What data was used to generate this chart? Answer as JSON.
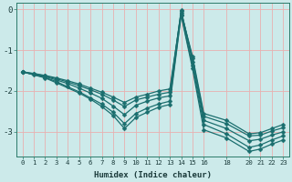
{
  "xlabel": "Humidex (Indice chaleur)",
  "background_color": "#cceaea",
  "grid_color": "#e8b0b0",
  "line_color": "#1a6e6e",
  "markersize": 2.5,
  "linewidth": 0.9,
  "xlim": [
    -0.5,
    23.5
  ],
  "ylim": [
    -3.6,
    0.15
  ],
  "xticks": [
    0,
    1,
    2,
    3,
    4,
    5,
    6,
    7,
    8,
    9,
    10,
    11,
    12,
    13,
    14,
    15,
    16,
    18,
    20,
    21,
    22,
    23
  ],
  "yticks": [
    0,
    -1,
    -2,
    -3
  ],
  "curves": [
    {
      "x": [
        0,
        1,
        2,
        3,
        4,
        5,
        6,
        7,
        8,
        9,
        10,
        11,
        12,
        13,
        14,
        15,
        16,
        18,
        20,
        21,
        22,
        23
      ],
      "y": [
        -1.53,
        -1.57,
        -1.62,
        -1.68,
        -1.75,
        -1.83,
        -1.93,
        -2.03,
        -2.15,
        -2.28,
        -2.15,
        -2.08,
        -2.0,
        -1.95,
        -0.08,
        -1.15,
        -2.55,
        -2.72,
        -3.05,
        -3.02,
        -2.92,
        -2.82
      ]
    },
    {
      "x": [
        0,
        1,
        2,
        3,
        4,
        5,
        6,
        7,
        8,
        9,
        10,
        11,
        12,
        13,
        14,
        15,
        16,
        18,
        20,
        21,
        22,
        23
      ],
      "y": [
        -1.53,
        -1.58,
        -1.63,
        -1.7,
        -1.78,
        -1.87,
        -1.97,
        -2.08,
        -2.22,
        -2.38,
        -2.22,
        -2.15,
        -2.08,
        -2.03,
        -0.05,
        -1.2,
        -2.62,
        -2.8,
        -3.1,
        -3.08,
        -2.98,
        -2.9
      ]
    },
    {
      "x": [
        0,
        1,
        2,
        3,
        4,
        5,
        6,
        7,
        8,
        9,
        10,
        11,
        12,
        13,
        14,
        15,
        16,
        18,
        20,
        21,
        22,
        23
      ],
      "y": [
        -1.53,
        -1.6,
        -1.65,
        -1.73,
        -1.82,
        -1.93,
        -2.05,
        -2.18,
        -2.37,
        -2.58,
        -2.35,
        -2.25,
        -2.17,
        -2.12,
        -0.02,
        -1.28,
        -2.72,
        -2.92,
        -3.22,
        -3.18,
        -3.08,
        -3.0
      ]
    },
    {
      "x": [
        0,
        2,
        3,
        4,
        5,
        6,
        7,
        8,
        9,
        10,
        11,
        12,
        13,
        14,
        15,
        16,
        18,
        20,
        21,
        22,
        23
      ],
      "y": [
        -1.53,
        -1.67,
        -1.77,
        -1.9,
        -2.02,
        -2.17,
        -2.32,
        -2.52,
        -2.8,
        -2.55,
        -2.42,
        -2.32,
        -2.25,
        -0.12,
        -1.38,
        -2.82,
        -3.05,
        -3.38,
        -3.32,
        -3.2,
        -3.1
      ]
    },
    {
      "x": [
        0,
        2,
        3,
        5,
        6,
        7,
        8,
        9,
        10,
        11,
        12,
        13,
        14,
        15,
        16,
        18,
        20,
        21,
        22,
        23
      ],
      "y": [
        -1.53,
        -1.68,
        -1.8,
        -2.05,
        -2.2,
        -2.38,
        -2.6,
        -2.92,
        -2.65,
        -2.52,
        -2.4,
        -2.33,
        -0.15,
        -1.45,
        -2.95,
        -3.15,
        -3.48,
        -3.42,
        -3.3,
        -3.2
      ]
    }
  ]
}
